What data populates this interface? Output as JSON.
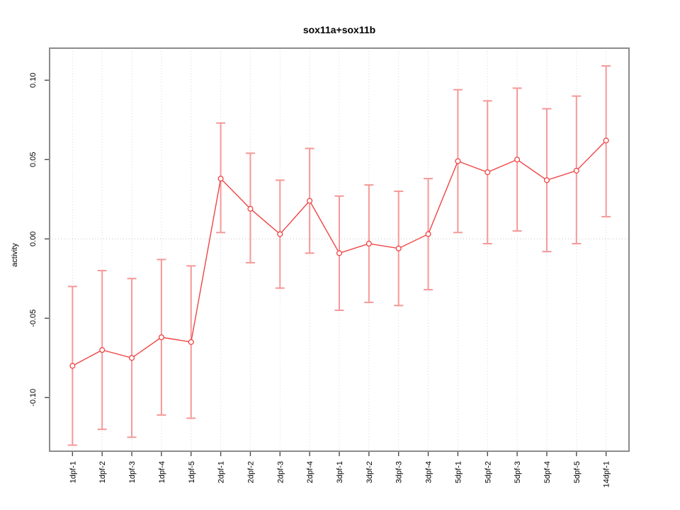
{
  "figure": {
    "title": "sox11a+sox11b"
  },
  "chart_data": {
    "type": "line",
    "title": "sox11a+sox11b",
    "xlabel": "",
    "ylabel": "activity",
    "legend": "none",
    "grid": "dotted vertical gridline per category; dotted horizontal line at y=0",
    "marker": "open-circle",
    "error_bars": true,
    "categories": [
      "1dpf-1",
      "1dpf-2",
      "1dpf-3",
      "1dpf-4",
      "1dpf-5",
      "2dpf-1",
      "2dpf-2",
      "2dpf-3",
      "2dpf-4",
      "3dpf-1",
      "3dpf-2",
      "3dpf-3",
      "3dpf-4",
      "5dpf-1",
      "5dpf-2",
      "5dpf-3",
      "5dpf-4",
      "5dpf-5",
      "14dpf-1"
    ],
    "series": [
      {
        "name": "activity",
        "values": [
          -0.08,
          -0.07,
          -0.075,
          -0.062,
          -0.065,
          0.038,
          0.019,
          0.003,
          0.024,
          -0.009,
          -0.003,
          -0.006,
          0.003,
          0.049,
          0.042,
          0.05,
          0.037,
          0.043,
          0.062
        ],
        "lower": [
          -0.13,
          -0.12,
          -0.125,
          -0.111,
          -0.113,
          0.004,
          -0.015,
          -0.031,
          -0.009,
          -0.045,
          -0.04,
          -0.042,
          -0.032,
          0.004,
          -0.003,
          0.005,
          -0.008,
          -0.003,
          0.014
        ],
        "upper": [
          -0.03,
          -0.02,
          -0.025,
          -0.013,
          -0.017,
          0.073,
          0.054,
          0.037,
          0.057,
          0.027,
          0.034,
          0.03,
          0.038,
          0.094,
          0.087,
          0.095,
          0.082,
          0.09,
          0.109
        ]
      }
    ],
    "ylim": [
      -0.1338,
      0.1202
    ],
    "yticks": [
      0.1,
      0.05,
      0.0,
      -0.05,
      -0.1
    ],
    "ytick_labels": [
      "0.10",
      "0.05",
      "0.00",
      "-0.05",
      "-0.10"
    ],
    "colors": {
      "series": "#ef4444",
      "error_bar": "#f59898",
      "marker_fill": "#ffffff",
      "gridline": "#d8d8d8",
      "zero_line": "#c6c6c6",
      "box": "#8c8c8c",
      "tick": "#4d4d4d",
      "text": "#000000"
    }
  }
}
